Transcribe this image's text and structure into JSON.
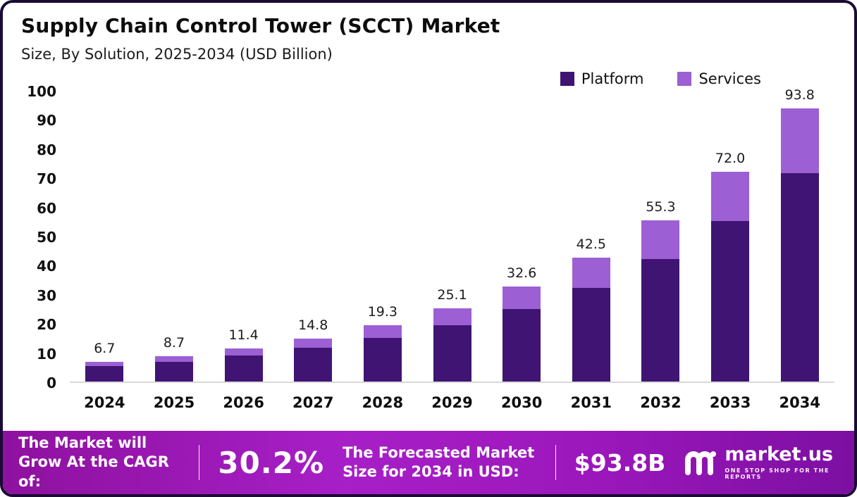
{
  "header": {
    "title": "Supply Chain Control Tower (SCCT) Market",
    "subtitle": "Size, By Solution, 2025-2034 (USD Billion)"
  },
  "legend": [
    {
      "label": "Platform",
      "color": "#3f1472"
    },
    {
      "label": "Services",
      "color": "#9d5fd4"
    }
  ],
  "chart_data": {
    "type": "bar",
    "stacked": true,
    "title": "Supply Chain Control Tower (SCCT) Market Size, By Solution, 2025-2034 (USD Billion)",
    "categories": [
      "2024",
      "2025",
      "2026",
      "2027",
      "2028",
      "2029",
      "2030",
      "2031",
      "2032",
      "2033",
      "2034"
    ],
    "series": [
      {
        "name": "Platform",
        "color": "#3f1472",
        "values": [
          5.2,
          6.8,
          8.9,
          11.5,
          14.9,
          19.3,
          24.9,
          32.2,
          42.0,
          55.0,
          71.5
        ]
      },
      {
        "name": "Services",
        "color": "#9d5fd4",
        "values": [
          1.5,
          1.9,
          2.5,
          3.3,
          4.4,
          5.8,
          7.7,
          10.3,
          13.3,
          17.0,
          22.3
        ]
      }
    ],
    "totals": [
      6.7,
      8.7,
      11.4,
      14.8,
      19.3,
      25.1,
      32.6,
      42.5,
      55.3,
      72.0,
      93.8
    ],
    "xlabel": "",
    "ylabel": "",
    "ylim": [
      0,
      100
    ],
    "yticks": [
      0,
      10,
      20,
      30,
      40,
      50,
      60,
      70,
      80,
      90,
      100
    ],
    "grid": false,
    "legend_position": "top-right"
  },
  "footer": {
    "cagr_label": "The Market will Grow At the CAGR of:",
    "cagr_value": "30.2%",
    "forecast_label": "The Forecasted Market Size for 2034 in USD:",
    "forecast_value": "$93.8B",
    "brand": "market.us",
    "brand_tagline": "ONE STOP SHOP FOR THE REPORTS"
  }
}
